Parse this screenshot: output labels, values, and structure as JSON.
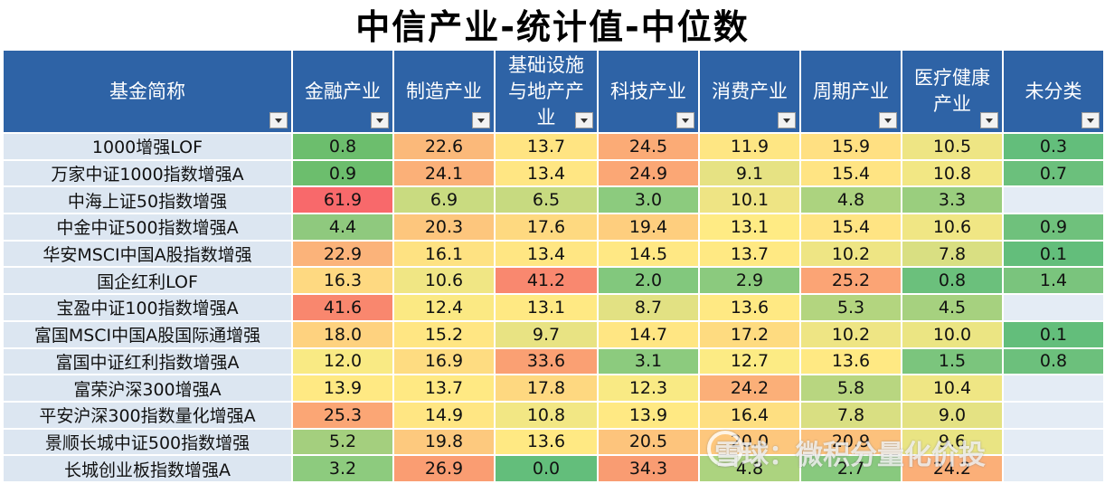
{
  "title": "中信产业-统计值-中位数",
  "headers": [
    {
      "lines": [
        "基金简称"
      ]
    },
    {
      "lines": [
        "金融产业"
      ]
    },
    {
      "lines": [
        "制造产业"
      ]
    },
    {
      "lines": [
        "基础设施",
        "与地产产",
        "业"
      ]
    },
    {
      "lines": [
        "科技产业"
      ]
    },
    {
      "lines": [
        "消费产业"
      ]
    },
    {
      "lines": [
        "周期产业"
      ]
    },
    {
      "lines": [
        "医疗健康",
        "产业"
      ]
    },
    {
      "lines": [
        "未分类"
      ]
    }
  ],
  "rows": [
    {
      "name": "1000增强LOF",
      "values": [
        "0.8",
        "22.6",
        "13.7",
        "24.5",
        "11.9",
        "15.9",
        "10.5",
        "0.3"
      ],
      "colors": [
        "#6cbe6d",
        "#fbb97a",
        "#ffe482",
        "#fbab76",
        "#fee683",
        "#ffe082",
        "#eee584",
        "#63be7b"
      ]
    },
    {
      "name": "万家中证1000指数增强A",
      "values": [
        "0.9",
        "24.1",
        "13.4",
        "24.9",
        "9.1",
        "15.4",
        "10.8",
        "0.7"
      ],
      "colors": [
        "#6cbe6d",
        "#fbb078",
        "#ffe683",
        "#fba775",
        "#e6e283",
        "#ffe483",
        "#f2e784",
        "#6bc07c"
      ]
    },
    {
      "name": "中海上证50指数增强",
      "values": [
        "61.9",
        "6.9",
        "6.5",
        "3.0",
        "10.1",
        "4.8",
        "3.3",
        ""
      ],
      "colors": [
        "#f8696b",
        "#c9db80",
        "#c7da80",
        "#8ccb7e",
        "#eee484",
        "#acd37f",
        "#9ace7e",
        "#e4ecf5"
      ]
    },
    {
      "name": "中金中证500指数增强A",
      "values": [
        "4.4",
        "20.3",
        "17.6",
        "19.4",
        "13.1",
        "15.4",
        "10.6",
        "0.9"
      ],
      "colors": [
        "#8fc97e",
        "#fdc67d",
        "#fed980",
        "#fece7e",
        "#ffeb84",
        "#ffe483",
        "#f0e684",
        "#6fc17c"
      ]
    },
    {
      "name": "华安MSCI中国A股指数增强",
      "values": [
        "22.9",
        "16.1",
        "13.4",
        "14.5",
        "13.7",
        "10.2",
        "7.8",
        "0.1"
      ],
      "colors": [
        "#fbb37a",
        "#fee282",
        "#ffe683",
        "#ffe884",
        "#ffe983",
        "#eee584",
        "#d9df82",
        "#63be7b"
      ]
    },
    {
      "name": "国企红利LOF",
      "values": [
        "16.3",
        "10.6",
        "41.2",
        "2.0",
        "2.9",
        "25.2",
        "0.8",
        "1.4"
      ],
      "colors": [
        "#fed981",
        "#f0e684",
        "#f9886f",
        "#82c87d",
        "#8bca7e",
        "#fba475",
        "#6bc07c",
        "#7ac47d"
      ]
    },
    {
      "name": "宝盈中证100指数增强A",
      "values": [
        "41.6",
        "12.4",
        "13.1",
        "8.7",
        "13.6",
        "5.3",
        "4.5",
        ""
      ],
      "colors": [
        "#f9876e",
        "#fbe983",
        "#ffe983",
        "#e2e183",
        "#ffe983",
        "#b3d57f",
        "#a6d17f",
        "#e4ecf5"
      ]
    },
    {
      "name": "富国MSCI中国A股国际通增强",
      "values": [
        "18.0",
        "15.2",
        "9.7",
        "14.7",
        "17.2",
        "10.2",
        "10.0",
        "0.1"
      ],
      "colors": [
        "#fed27f",
        "#ffe683",
        "#e8e383",
        "#ffe683",
        "#fedb80",
        "#eee584",
        "#ebe583",
        "#63be7b"
      ]
    },
    {
      "name": "富国中证红利指数增强A",
      "values": [
        "12.0",
        "16.9",
        "33.6",
        "3.1",
        "12.7",
        "13.6",
        "1.5",
        "0.8"
      ],
      "colors": [
        "#f9ea84",
        "#fedc81",
        "#faa073",
        "#8ccb7e",
        "#fceb84",
        "#ffe983",
        "#7bc57d",
        "#6cc07c"
      ]
    },
    {
      "name": "富荣沪深300增强A",
      "values": [
        "13.9",
        "13.7",
        "17.8",
        "12.3",
        "24.2",
        "5.8",
        "10.4",
        ""
      ],
      "colors": [
        "#ffe983",
        "#ffe983",
        "#fed880",
        "#f9ea84",
        "#fbaf78",
        "#b8d680",
        "#efe684",
        "#e4ecf5"
      ]
    },
    {
      "name": "平安沪深300指数量化增强A",
      "values": [
        "25.3",
        "14.9",
        "10.8",
        "13.9",
        "16.4",
        "7.8",
        "9.0",
        ""
      ],
      "colors": [
        "#fba675",
        "#ffe683",
        "#f2e784",
        "#ffe983",
        "#fedf81",
        "#d9df82",
        "#e4e283",
        "#e4ecf5"
      ]
    },
    {
      "name": "景顺长城中证500指数增强",
      "values": [
        "5.2",
        "19.8",
        "13.6",
        "20.5",
        "20.0",
        "20.9",
        "9.6",
        ""
      ],
      "colors": [
        "#a4cf7e",
        "#fdc97e",
        "#ffe983",
        "#fdc47c",
        "#fdc77d",
        "#fcc17c",
        "#e9e483",
        "#e4ecf5"
      ]
    },
    {
      "name": "长城创业板指数增强A",
      "values": [
        "3.2",
        "26.9",
        "0.0",
        "34.3",
        "4.8",
        "2.7",
        "24.2",
        ""
      ],
      "colors": [
        "#8dcb7e",
        "#fa9d72",
        "#63be7b",
        "#f99c72",
        "#acd37f",
        "#88c97e",
        "#fbaf78",
        "#e4ecf5"
      ]
    }
  ],
  "watermark": "雪球：微积分量化价投"
}
